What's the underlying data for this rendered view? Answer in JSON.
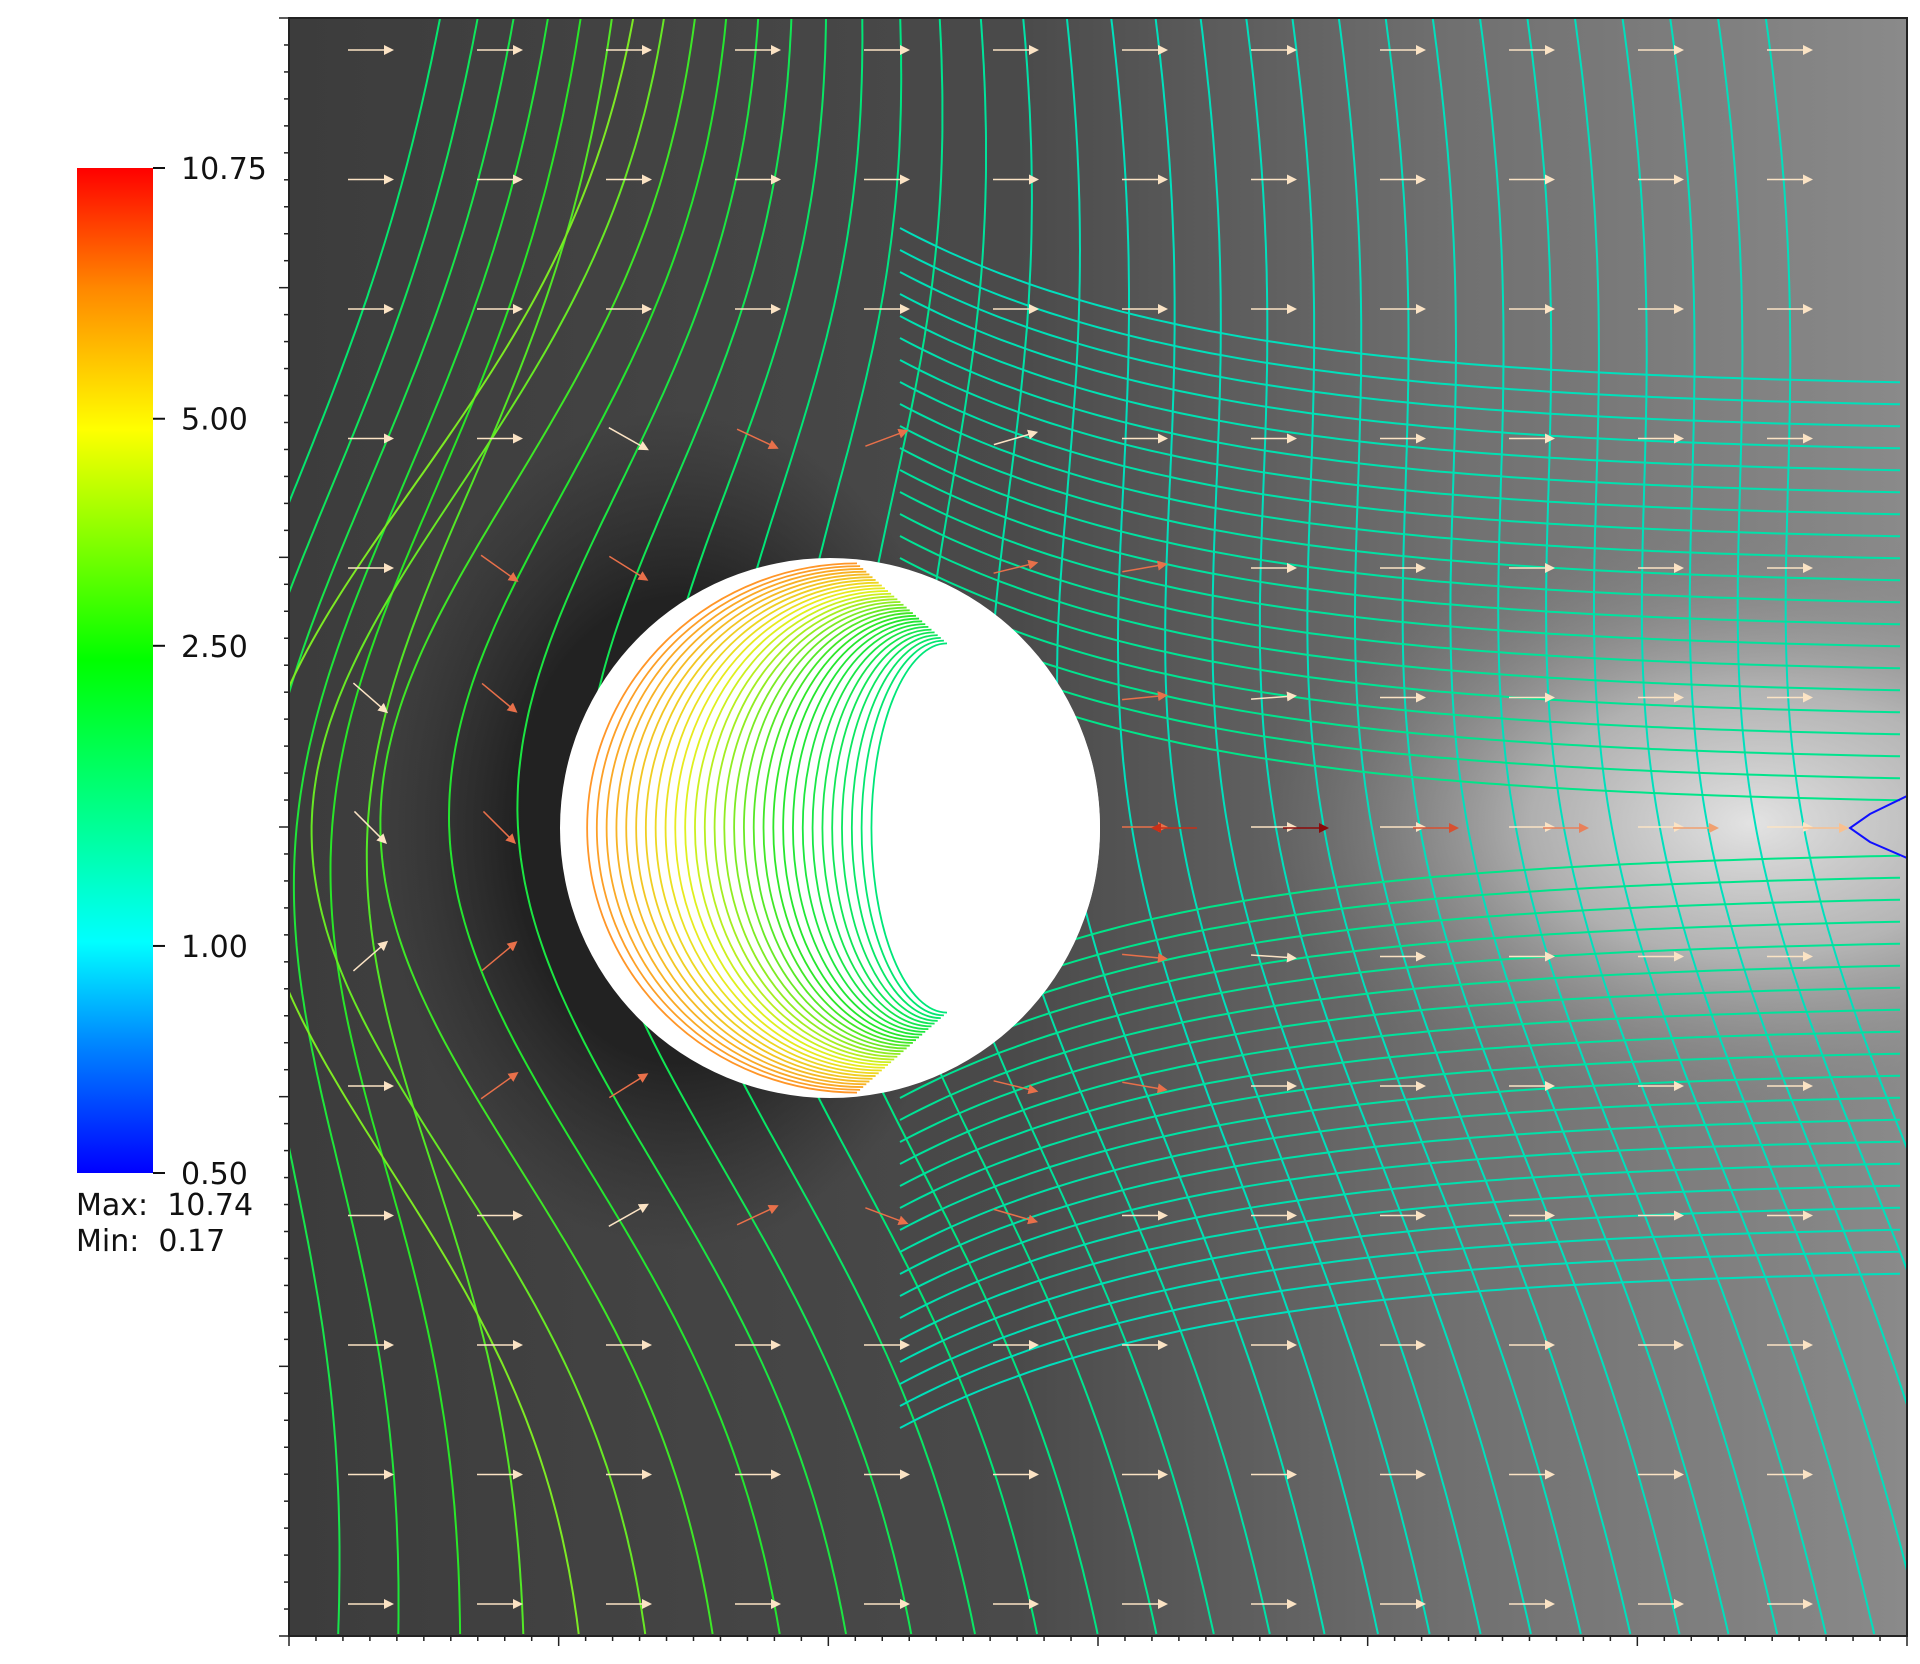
{
  "colorbar": {
    "max_label": "10.75",
    "min_label": "0.50",
    "tick_labels": [
      "10.75",
      "5.00",
      "2.50",
      "1.00",
      "0.50"
    ],
    "tick_values": [
      10.75,
      5.0,
      2.5,
      1.0,
      0.5
    ],
    "scale": "log",
    "colors": [
      "#0000ff",
      "#00ffff",
      "#00ff00",
      "#ffff00",
      "#ff0000"
    ]
  },
  "stats": {
    "max_label": "Max:  10.74",
    "min_label": "Min:  0.17"
  },
  "plot": {
    "background_dark": "#3e3e3e",
    "background_light": "#dcdcdc",
    "obstacle_color": "#ffffff",
    "vector_color": "#fbe3c4"
  }
}
